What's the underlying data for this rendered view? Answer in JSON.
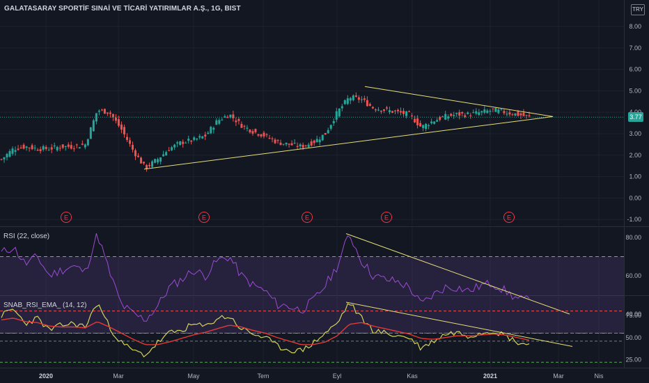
{
  "header": {
    "title": "GALATASARAY SPORTİF SINAİ VE TİCARİ YATIRIMLAR A.Ş., 1G, BIST",
    "currency_button": "TRY",
    "last_price": "3.77",
    "bg_color": "#131722",
    "up_color": "#26a69a",
    "down_color": "#ef5350"
  },
  "chart_data": [
    {
      "type": "candlestick",
      "name": "price",
      "y_ticks": [
        "8.00",
        "7.00",
        "6.00",
        "5.00",
        "4.00",
        "3.00",
        "2.00",
        "1.00",
        "0.00",
        "-1.00"
      ],
      "ylim": [
        -1.2,
        8.6
      ],
      "x_ticks": [
        "2020",
        "Mar",
        "May",
        "Tem",
        "Eyl",
        "Kas",
        "2021",
        "Mar",
        "Nis"
      ],
      "approx_close": [
        1.8,
        2.3,
        2.4,
        2.3,
        2.3,
        2.4,
        2.4,
        2.5,
        4.1,
        4.0,
        3.2,
        2.2,
        1.4,
        1.8,
        2.3,
        2.6,
        2.7,
        2.9,
        3.6,
        3.9,
        3.4,
        3.1,
        2.9,
        2.6,
        2.5,
        2.4,
        2.6,
        3.0,
        4.0,
        4.7,
        4.6,
        4.2,
        4.1,
        4.0,
        3.9,
        3.3,
        3.6,
        3.8,
        3.9,
        3.9,
        4.0,
        4.1,
        4.0,
        3.9,
        3.77
      ],
      "earnings_markers": [
        "E",
        "E",
        "E",
        "E",
        "E"
      ],
      "trendlines": [
        {
          "name": "triangle-upper",
          "points": [
            [
              5.2,
              0.0
            ],
            [
              3.8,
              1.0
            ]
          ]
        },
        {
          "name": "triangle-lower",
          "points": [
            [
              1.35,
              0.0
            ],
            [
              3.8,
              1.0
            ]
          ]
        }
      ]
    },
    {
      "type": "line",
      "name": "rsi",
      "label": "RSI (22, close)",
      "y_ticks": [
        "80.00",
        "60.00",
        "40.00"
      ],
      "ylim": [
        25,
        90
      ],
      "bands": {
        "upper": 70,
        "lower": 30
      },
      "approx_values": [
        72,
        75,
        66,
        70,
        60,
        63,
        65,
        62,
        82,
        62,
        45,
        40,
        37,
        44,
        54,
        58,
        63,
        60,
        68,
        70,
        60,
        55,
        52,
        45,
        44,
        42,
        47,
        55,
        65,
        82,
        68,
        60,
        58,
        57,
        54,
        45,
        50,
        54,
        54,
        52,
        55,
        56,
        52,
        48,
        47
      ],
      "trendline": {
        "name": "rsi-trendline",
        "points": [
          [
            82,
            0.0
          ],
          [
            40,
            1.0
          ]
        ]
      }
    },
    {
      "type": "line",
      "name": "snab-rsi-ema",
      "label": "SNAB_RSI_EMA_ (14, 12)",
      "y_ticks": [
        "75.00",
        "50.00",
        "25.00"
      ],
      "ylim": [
        18,
        95
      ],
      "levels": [
        80,
        55,
        46,
        22
      ],
      "rsi_approx": [
        75,
        82,
        66,
        72,
        58,
        64,
        66,
        62,
        90,
        62,
        44,
        35,
        30,
        44,
        55,
        58,
        65,
        62,
        72,
        74,
        60,
        54,
        50,
        40,
        36,
        35,
        44,
        55,
        66,
        90,
        72,
        58,
        55,
        52,
        50,
        38,
        46,
        54,
        56,
        52,
        56,
        58,
        52,
        45,
        42
      ],
      "ema_approx": [
        70,
        72,
        68,
        67,
        63,
        62,
        62,
        61,
        68,
        62,
        55,
        48,
        42,
        42,
        45,
        49,
        53,
        56,
        60,
        64,
        62,
        58,
        55,
        50,
        46,
        42,
        42,
        45,
        52,
        65,
        67,
        63,
        60,
        57,
        54,
        49,
        48,
        50,
        52,
        52,
        53,
        54,
        53,
        50,
        47
      ],
      "trendline": {
        "name": "snab-trendline",
        "points": [
          [
            90,
            0.0
          ],
          [
            40,
            1.0
          ]
        ]
      }
    }
  ]
}
